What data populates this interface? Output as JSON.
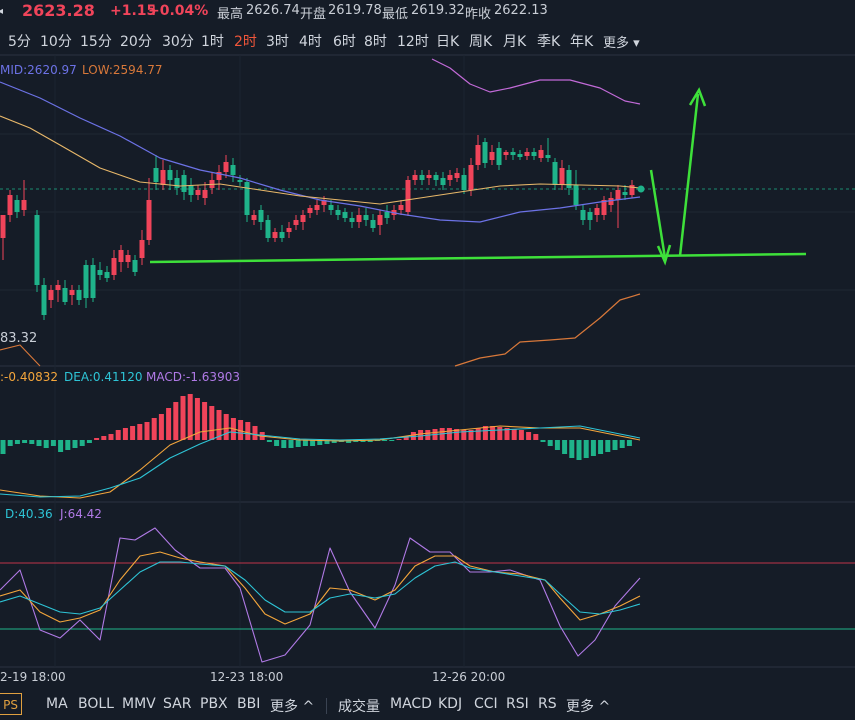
{
  "header": {
    "last_price": "2623.28",
    "change": "+1.15",
    "change_pct": "+0.04%",
    "high_label": "最高",
    "high": "2626.74",
    "open_label": "开盘",
    "open": "2619.78",
    "low_label": "最低",
    "low": "2619.32",
    "prev_close_label": "昨收",
    "prev_close": "2622.13"
  },
  "periods": [
    "5分",
    "10分",
    "15分",
    "20分",
    "30分",
    "1时",
    "2时",
    "3时",
    "4时",
    "6时",
    "8时",
    "12时",
    "日K",
    "周K",
    "月K",
    "季K",
    "年K",
    "更多"
  ],
  "active_period": "2时",
  "main_chart": {
    "mid_label": "MID:2620.97",
    "low_label": "LOW:2594.77",
    "min_price_label": "83.32"
  },
  "macd": {
    "dif_label": ":-0.40832",
    "dea_label": "DEA:0.41120",
    "macd_label": "MACD:-1.63903"
  },
  "kdj": {
    "d_label": "D:40.36",
    "j_label": "J:64.42"
  },
  "time_axis": [
    "2-19 18:00",
    "12-23 18:00",
    "12-26 20:00"
  ],
  "footer": {
    "vip_label": "PS",
    "main_indicators": [
      "MA",
      "BOLL",
      "MMV",
      "SAR",
      "PBX",
      "BBI",
      "更多 ^"
    ],
    "sub_indicators": [
      "成交量",
      "MACD",
      "KDJ",
      "CCI",
      "RSI",
      "RS",
      "更多 ^"
    ]
  },
  "colors": {
    "up": "#f0445a",
    "down": "#1fb38a",
    "background": "#151c27",
    "annotation": "#3ee03a",
    "mid_line": "#6c72e6",
    "low_line": "#d8783a",
    "upper_line": "#c26ad8",
    "active_tab": "#f0563a"
  }
}
